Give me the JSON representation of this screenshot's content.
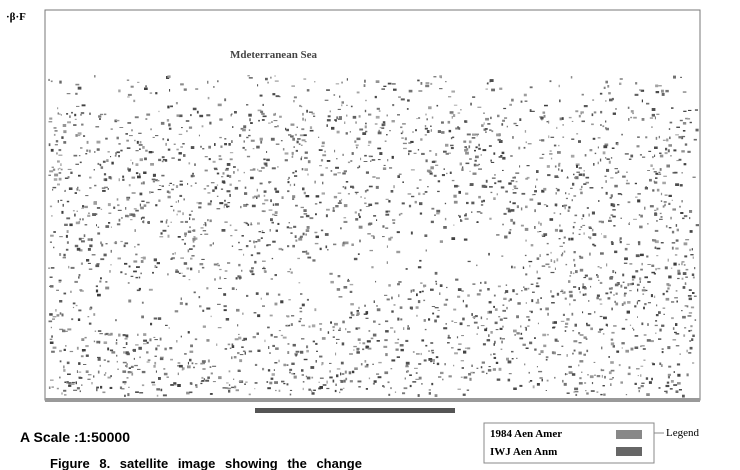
{
  "map": {
    "corner_label": "·β·F",
    "sea_label": "Mdeterranean Sea"
  },
  "scale": "A Scale :1:50000",
  "legend": {
    "title": "Legend",
    "items": [
      {
        "label": "1984 Aen Amer"
      },
      {
        "label": "IWJ Aen Anm"
      }
    ]
  },
  "caption": "Figure 8. satellite image showing the change"
}
